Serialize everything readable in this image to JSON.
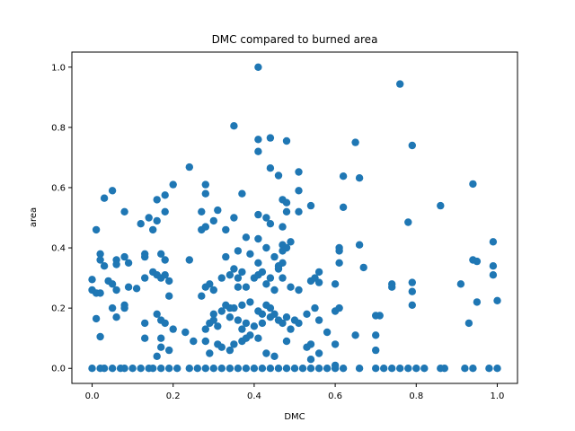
{
  "chart_data": {
    "type": "scatter",
    "title": "DMC compared to burned area",
    "xlabel": "DMC",
    "ylabel": "area",
    "xlim": [
      -0.05,
      1.05
    ],
    "ylim": [
      -0.05,
      1.05
    ],
    "xticks": [
      "0.0",
      "0.2",
      "0.4",
      "0.6",
      "0.8",
      "1.0"
    ],
    "yticks": [
      "0.0",
      "0.2",
      "0.4",
      "0.6",
      "0.8",
      "1.0"
    ],
    "grid": false,
    "marker_color": "#1f77b4",
    "points": [
      [
        0.41,
        1.0
      ],
      [
        0.76,
        0.944
      ],
      [
        0.35,
        0.805
      ],
      [
        0.79,
        0.74
      ],
      [
        0.41,
        0.76
      ],
      [
        0.44,
        0.765
      ],
      [
        0.41,
        0.72
      ],
      [
        0.48,
        0.755
      ],
      [
        0.65,
        0.75
      ],
      [
        0.66,
        0.632
      ],
      [
        0.24,
        0.668
      ],
      [
        0.44,
        0.665
      ],
      [
        0.46,
        0.64
      ],
      [
        0.51,
        0.652
      ],
      [
        0.62,
        0.638
      ],
      [
        0.28,
        0.61
      ],
      [
        0.2,
        0.61
      ],
      [
        0.94,
        0.612
      ],
      [
        0.05,
        0.59
      ],
      [
        0.03,
        0.565
      ],
      [
        0.28,
        0.58
      ],
      [
        0.37,
        0.58
      ],
      [
        0.51,
        0.59
      ],
      [
        0.18,
        0.575
      ],
      [
        0.16,
        0.56
      ],
      [
        0.47,
        0.56
      ],
      [
        0.48,
        0.55
      ],
      [
        0.54,
        0.54
      ],
      [
        0.86,
        0.54
      ],
      [
        0.62,
        0.535
      ],
      [
        0.08,
        0.52
      ],
      [
        0.14,
        0.5
      ],
      [
        0.18,
        0.52
      ],
      [
        0.27,
        0.52
      ],
      [
        0.31,
        0.525
      ],
      [
        0.41,
        0.51
      ],
      [
        0.51,
        0.52
      ],
      [
        0.48,
        0.52
      ],
      [
        0.12,
        0.48
      ],
      [
        0.16,
        0.49
      ],
      [
        0.3,
        0.49
      ],
      [
        0.35,
        0.5
      ],
      [
        0.43,
        0.5
      ],
      [
        0.44,
        0.48
      ],
      [
        0.47,
        0.47
      ],
      [
        0.78,
        0.485
      ],
      [
        0.01,
        0.46
      ],
      [
        0.15,
        0.46
      ],
      [
        0.27,
        0.46
      ],
      [
        0.28,
        0.47
      ],
      [
        0.33,
        0.46
      ],
      [
        0.38,
        0.435
      ],
      [
        0.41,
        0.43
      ],
      [
        0.43,
        0.4
      ],
      [
        0.47,
        0.41
      ],
      [
        0.47,
        0.39
      ],
      [
        0.48,
        0.4
      ],
      [
        0.49,
        0.42
      ],
      [
        0.61,
        0.4
      ],
      [
        0.61,
        0.39
      ],
      [
        0.66,
        0.41
      ],
      [
        0.99,
        0.42
      ],
      [
        0.02,
        0.38
      ],
      [
        0.02,
        0.36
      ],
      [
        0.03,
        0.34
      ],
      [
        0.06,
        0.36
      ],
      [
        0.06,
        0.345
      ],
      [
        0.08,
        0.37
      ],
      [
        0.09,
        0.35
      ],
      [
        0.13,
        0.38
      ],
      [
        0.13,
        0.37
      ],
      [
        0.17,
        0.38
      ],
      [
        0.18,
        0.36
      ],
      [
        0.24,
        0.36
      ],
      [
        0.33,
        0.37
      ],
      [
        0.36,
        0.39
      ],
      [
        0.39,
        0.38
      ],
      [
        0.41,
        0.35
      ],
      [
        0.45,
        0.37
      ],
      [
        0.46,
        0.34
      ],
      [
        0.47,
        0.35
      ],
      [
        0.56,
        0.32
      ],
      [
        0.61,
        0.35
      ],
      [
        0.67,
        0.335
      ],
      [
        0.94,
        0.36
      ],
      [
        0.95,
        0.355
      ],
      [
        0.99,
        0.34
      ],
      [
        0.99,
        0.31
      ],
      [
        0.0,
        0.295
      ],
      [
        0.0,
        0.26
      ],
      [
        0.01,
        0.25
      ],
      [
        0.04,
        0.29
      ],
      [
        0.05,
        0.28
      ],
      [
        0.06,
        0.26
      ],
      [
        0.09,
        0.27
      ],
      [
        0.11,
        0.265
      ],
      [
        0.13,
        0.3
      ],
      [
        0.15,
        0.32
      ],
      [
        0.16,
        0.31
      ],
      [
        0.17,
        0.3
      ],
      [
        0.18,
        0.31
      ],
      [
        0.19,
        0.29
      ],
      [
        0.19,
        0.24
      ],
      [
        0.27,
        0.24
      ],
      [
        0.28,
        0.27
      ],
      [
        0.29,
        0.28
      ],
      [
        0.3,
        0.26
      ],
      [
        0.32,
        0.3
      ],
      [
        0.34,
        0.31
      ],
      [
        0.35,
        0.33
      ],
      [
        0.36,
        0.3
      ],
      [
        0.36,
        0.27
      ],
      [
        0.37,
        0.32
      ],
      [
        0.38,
        0.27
      ],
      [
        0.4,
        0.3
      ],
      [
        0.41,
        0.31
      ],
      [
        0.42,
        0.32
      ],
      [
        0.43,
        0.28
      ],
      [
        0.44,
        0.3
      ],
      [
        0.45,
        0.26
      ],
      [
        0.46,
        0.33
      ],
      [
        0.47,
        0.3
      ],
      [
        0.49,
        0.27
      ],
      [
        0.51,
        0.26
      ],
      [
        0.54,
        0.29
      ],
      [
        0.55,
        0.3
      ],
      [
        0.56,
        0.285
      ],
      [
        0.6,
        0.28
      ],
      [
        0.74,
        0.28
      ],
      [
        0.74,
        0.27
      ],
      [
        0.79,
        0.285
      ],
      [
        0.79,
        0.255
      ],
      [
        0.91,
        0.28
      ],
      [
        0.02,
        0.25
      ],
      [
        0.05,
        0.2
      ],
      [
        0.06,
        0.17
      ],
      [
        0.08,
        0.21
      ],
      [
        0.08,
        0.2
      ],
      [
        0.01,
        0.165
      ],
      [
        0.02,
        0.105
      ],
      [
        0.13,
        0.15
      ],
      [
        0.16,
        0.18
      ],
      [
        0.17,
        0.16
      ],
      [
        0.18,
        0.15
      ],
      [
        0.2,
        0.13
      ],
      [
        0.13,
        0.1
      ],
      [
        0.17,
        0.1
      ],
      [
        0.17,
        0.07
      ],
      [
        0.19,
        0.06
      ],
      [
        0.16,
        0.04
      ],
      [
        0.23,
        0.12
      ],
      [
        0.25,
        0.09
      ],
      [
        0.28,
        0.13
      ],
      [
        0.29,
        0.15
      ],
      [
        0.3,
        0.16
      ],
      [
        0.3,
        0.18
      ],
      [
        0.31,
        0.14
      ],
      [
        0.32,
        0.19
      ],
      [
        0.33,
        0.21
      ],
      [
        0.34,
        0.2
      ],
      [
        0.34,
        0.17
      ],
      [
        0.35,
        0.2
      ],
      [
        0.36,
        0.16
      ],
      [
        0.37,
        0.13
      ],
      [
        0.37,
        0.21
      ],
      [
        0.38,
        0.15
      ],
      [
        0.39,
        0.22
      ],
      [
        0.4,
        0.14
      ],
      [
        0.41,
        0.19
      ],
      [
        0.42,
        0.18
      ],
      [
        0.42,
        0.15
      ],
      [
        0.43,
        0.21
      ],
      [
        0.44,
        0.2
      ],
      [
        0.44,
        0.17
      ],
      [
        0.45,
        0.18
      ],
      [
        0.46,
        0.16
      ],
      [
        0.47,
        0.15
      ],
      [
        0.48,
        0.17
      ],
      [
        0.49,
        0.13
      ],
      [
        0.5,
        0.16
      ],
      [
        0.51,
        0.15
      ],
      [
        0.53,
        0.18
      ],
      [
        0.55,
        0.2
      ],
      [
        0.56,
        0.16
      ],
      [
        0.6,
        0.19
      ],
      [
        0.61,
        0.2
      ],
      [
        0.7,
        0.175
      ],
      [
        0.71,
        0.175
      ],
      [
        0.79,
        0.21
      ],
      [
        0.95,
        0.22
      ],
      [
        1.0,
        0.225
      ],
      [
        0.93,
        0.15
      ],
      [
        0.28,
        0.09
      ],
      [
        0.29,
        0.05
      ],
      [
        0.31,
        0.08
      ],
      [
        0.32,
        0.07
      ],
      [
        0.34,
        0.06
      ],
      [
        0.35,
        0.08
      ],
      [
        0.37,
        0.09
      ],
      [
        0.38,
        0.1
      ],
      [
        0.39,
        0.11
      ],
      [
        0.41,
        0.1
      ],
      [
        0.43,
        0.05
      ],
      [
        0.45,
        0.04
      ],
      [
        0.48,
        0.09
      ],
      [
        0.53,
        0.07
      ],
      [
        0.54,
        0.08
      ],
      [
        0.56,
        0.05
      ],
      [
        0.58,
        0.12
      ],
      [
        0.6,
        0.08
      ],
      [
        0.65,
        0.11
      ],
      [
        0.7,
        0.11
      ],
      [
        0.7,
        0.06
      ],
      [
        0.54,
        0.03
      ],
      [
        0.6,
        0.01
      ],
      [
        0.0,
        0.0
      ],
      [
        0.02,
        0.0
      ],
      [
        0.03,
        0.0
      ],
      [
        0.05,
        0.0
      ],
      [
        0.07,
        0.0
      ],
      [
        0.08,
        0.0
      ],
      [
        0.1,
        0.0
      ],
      [
        0.12,
        0.0
      ],
      [
        0.14,
        0.0
      ],
      [
        0.15,
        0.0
      ],
      [
        0.17,
        0.0
      ],
      [
        0.19,
        0.0
      ],
      [
        0.21,
        0.0
      ],
      [
        0.24,
        0.0
      ],
      [
        0.26,
        0.0
      ],
      [
        0.28,
        0.0
      ],
      [
        0.3,
        0.0
      ],
      [
        0.32,
        0.0
      ],
      [
        0.34,
        0.0
      ],
      [
        0.36,
        0.0
      ],
      [
        0.38,
        0.0
      ],
      [
        0.4,
        0.0
      ],
      [
        0.42,
        0.0
      ],
      [
        0.44,
        0.0
      ],
      [
        0.46,
        0.0
      ],
      [
        0.48,
        0.0
      ],
      [
        0.5,
        0.0
      ],
      [
        0.52,
        0.0
      ],
      [
        0.54,
        0.0
      ],
      [
        0.56,
        0.0
      ],
      [
        0.58,
        0.0
      ],
      [
        0.6,
        0.0
      ],
      [
        0.62,
        0.0
      ],
      [
        0.66,
        0.0
      ],
      [
        0.7,
        0.0
      ],
      [
        0.72,
        0.0
      ],
      [
        0.74,
        0.0
      ],
      [
        0.76,
        0.0
      ],
      [
        0.78,
        0.0
      ],
      [
        0.8,
        0.0
      ],
      [
        0.82,
        0.0
      ],
      [
        0.86,
        0.0
      ],
      [
        0.87,
        0.0
      ],
      [
        0.92,
        0.0
      ],
      [
        0.94,
        0.0
      ],
      [
        0.98,
        0.0
      ],
      [
        1.0,
        0.0
      ]
    ]
  }
}
